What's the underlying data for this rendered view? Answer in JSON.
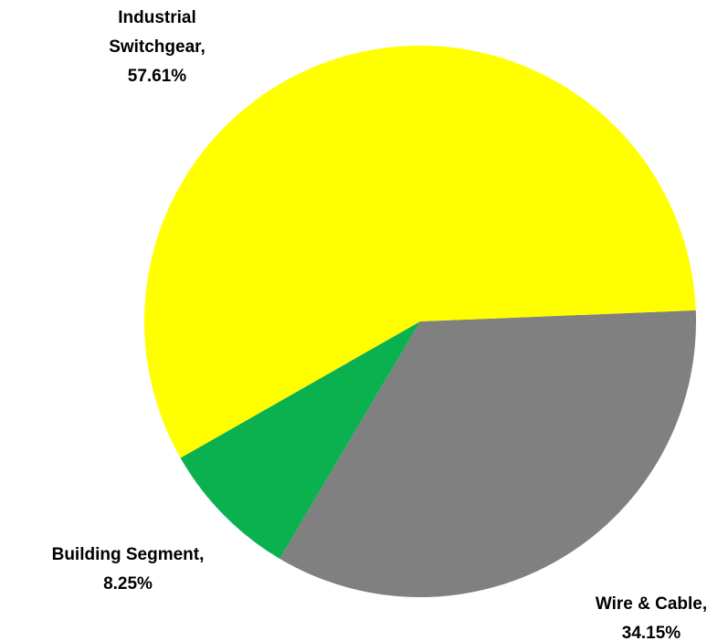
{
  "chart_data": {
    "type": "pie",
    "categories": [
      "Wire & Cable,",
      "Building Segment,",
      "Industrial Switchgear,"
    ],
    "values": [
      34.15,
      8.25,
      57.61
    ],
    "value_labels": [
      "34.15%",
      "8.25%",
      "57.61%"
    ],
    "colors": [
      "#808080",
      "#0bb04f",
      "#ffff00"
    ]
  }
}
